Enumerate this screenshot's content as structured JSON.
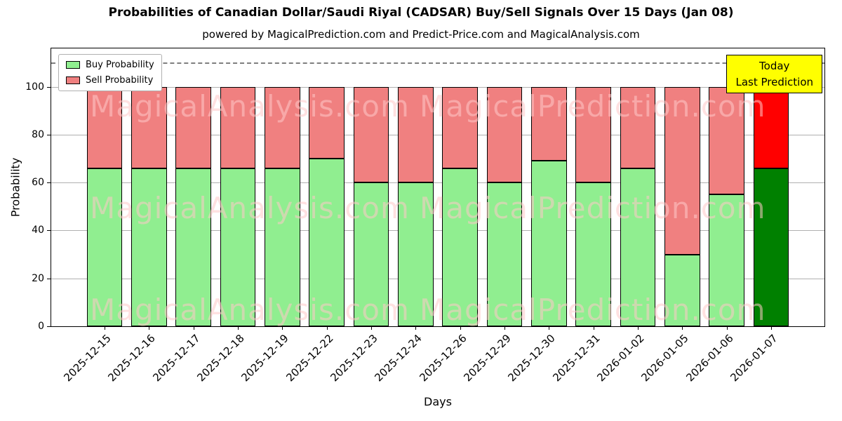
{
  "subtitle": "powered by MagicalPrediction.com and Predict-Price.com and MagicalAnalysis.com",
  "legend": {
    "items": [
      {
        "label": "Buy Probability",
        "color": "#90ee90"
      },
      {
        "label": "Sell Probability",
        "color": "#f08080"
      }
    ]
  },
  "annotation": {
    "line1": "Today",
    "line2": "Last Prediction",
    "bg": "#ffff00"
  },
  "watermarks": {
    "texts": [
      "MagicalAnalysis.com",
      "MagicalPrediction.com"
    ],
    "color": "rgba(255,200,200,0.55)"
  },
  "chart_data": {
    "type": "bar",
    "stacked": true,
    "title": "Probabilities of Canadian Dollar/Saudi Riyal (CADSAR) Buy/Sell Signals Over 15 Days (Jan 08)",
    "xlabel": "Days",
    "ylabel": "Probability",
    "ylim": [
      0,
      116
    ],
    "yticks": [
      0,
      20,
      40,
      60,
      80,
      100
    ],
    "grid": true,
    "legend_position": "upper-left",
    "dashed_line_y": 110,
    "categories": [
      "2025-12-15",
      "2025-12-16",
      "2025-12-17",
      "2025-12-18",
      "2025-12-19",
      "2025-12-22",
      "2025-12-23",
      "2025-12-24",
      "2025-12-26",
      "2025-12-29",
      "2025-12-30",
      "2025-12-31",
      "2026-01-02",
      "2026-01-05",
      "2026-01-06",
      "2026-01-07"
    ],
    "series": [
      {
        "name": "Buy Probability",
        "color": "#90ee90",
        "values": [
          66,
          66,
          66,
          66,
          66,
          70,
          60,
          60,
          66,
          60,
          69,
          60,
          66,
          30,
          55,
          66
        ]
      },
      {
        "name": "Sell Probability",
        "color": "#f08080",
        "values": [
          34,
          34,
          34,
          34,
          34,
          30,
          40,
          40,
          34,
          40,
          31,
          40,
          34,
          70,
          45,
          34
        ]
      }
    ],
    "highlight_last": {
      "buy_color": "#008000",
      "sell_color": "#ff0000"
    },
    "bar_edge_color": "#000000"
  }
}
